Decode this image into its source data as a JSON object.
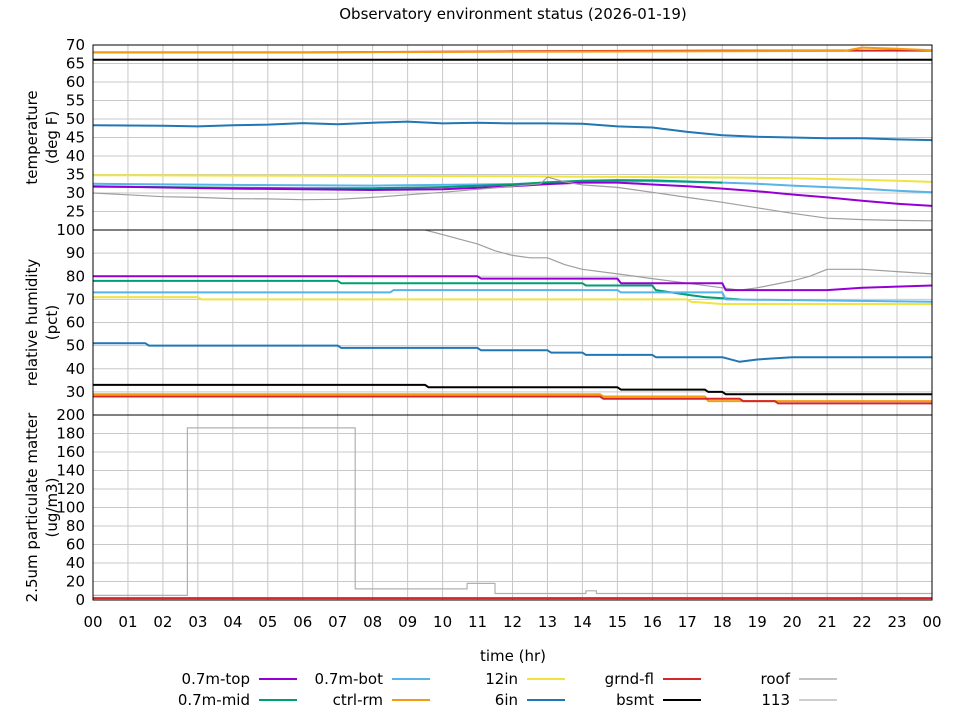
{
  "chart_data": [
    {
      "type": "line",
      "title": "Observatory environment status (2026-01-19)",
      "ylabel": [
        "temperature",
        "(deg F)"
      ],
      "ylim": [
        20,
        70
      ],
      "yticks": [
        20,
        25,
        30,
        35,
        40,
        45,
        50,
        55,
        60,
        65,
        70
      ],
      "ytick_labels": [
        "",
        "25",
        "30",
        "35",
        "40",
        "45",
        "50",
        "55",
        "60",
        "65",
        "70"
      ],
      "xlim": [
        0,
        24
      ],
      "grid": true,
      "series": [
        {
          "name": "grnd-fl",
          "color": "#d62728",
          "x": [
            0,
            6,
            12,
            18,
            24
          ],
          "y": [
            68,
            68,
            68.3,
            68.5,
            68.5
          ]
        },
        {
          "name": "ctrl-rm",
          "color": "#f39c12",
          "x": [
            0,
            6,
            12,
            18,
            21.5,
            22,
            23,
            24
          ],
          "y": [
            68,
            68,
            68.2,
            68.3,
            68.4,
            69.3,
            69,
            68.6
          ]
        },
        {
          "name": "bsmt",
          "color": "#000000",
          "x": [
            0,
            6,
            12,
            18,
            24
          ],
          "y": [
            66,
            66,
            66,
            66,
            66
          ]
        },
        {
          "name": "6in",
          "color": "#1f77b4",
          "x": [
            0,
            2,
            3,
            4,
            5,
            6,
            7,
            8,
            9,
            10,
            11,
            12,
            13,
            14,
            15,
            16,
            17,
            18,
            19,
            20,
            21,
            22,
            23,
            24
          ],
          "y": [
            48.3,
            48.2,
            48,
            48.3,
            48.5,
            48.9,
            48.6,
            49,
            49.3,
            48.8,
            49,
            48.8,
            48.8,
            48.7,
            48,
            47.7,
            46.5,
            45.6,
            45.2,
            45,
            44.8,
            44.8,
            44.5,
            44.3
          ]
        },
        {
          "name": "12in",
          "color": "#f0e442",
          "x": [
            0,
            4,
            8,
            12,
            14,
            16,
            18,
            20,
            22,
            24
          ],
          "y": [
            34.8,
            34.7,
            34.6,
            34.5,
            34.4,
            34.3,
            34.2,
            34,
            33.6,
            33
          ]
        },
        {
          "name": "0.7m-bot",
          "color": "#56b4e9",
          "x": [
            0,
            4,
            8,
            12,
            13,
            14,
            15,
            16,
            17,
            18,
            19,
            20,
            21,
            22,
            23,
            24
          ],
          "y": [
            32.5,
            32.2,
            32,
            32.4,
            32.8,
            33,
            33.2,
            33.2,
            33,
            32.8,
            32.5,
            32,
            31.6,
            31.2,
            30.6,
            30.2
          ]
        },
        {
          "name": "0.7m-mid",
          "color": "#009e73",
          "x": [
            0,
            2,
            4,
            6,
            8,
            10,
            12,
            13,
            14,
            15,
            16,
            17,
            18
          ],
          "y": [
            31.7,
            31.6,
            31.4,
            31.3,
            31.3,
            31.6,
            32.3,
            32.9,
            33.3,
            33.5,
            33.4,
            33.1,
            32.8
          ]
        },
        {
          "name": "0.7m-top",
          "color": "#9400d3",
          "x": [
            0,
            4,
            8,
            10,
            12,
            13,
            14,
            15,
            16,
            17,
            18,
            19,
            20,
            21,
            22,
            23,
            24
          ],
          "y": [
            31.8,
            31.2,
            30.8,
            31,
            31.8,
            32.4,
            32.8,
            32.8,
            32.3,
            31.8,
            31.2,
            30.5,
            29.6,
            28.8,
            27.9,
            27.1,
            26.5
          ]
        },
        {
          "name": "roof",
          "color": "#9e9e9e",
          "x": [
            0,
            1,
            2,
            3,
            4,
            5,
            6,
            7,
            8,
            9,
            10,
            11,
            12,
            12.8,
            13,
            13.5,
            14,
            15,
            16,
            17,
            18,
            19,
            20,
            21,
            22,
            23,
            24
          ],
          "y": [
            30,
            29.5,
            29,
            28.8,
            28.5,
            28.4,
            28.2,
            28.3,
            28.8,
            29.5,
            30.2,
            31,
            31.8,
            32.5,
            34.3,
            33,
            32.2,
            31.5,
            30.2,
            28.8,
            27.5,
            26,
            24.5,
            23.2,
            22.8,
            22.6,
            22.5
          ]
        }
      ]
    },
    {
      "type": "line",
      "ylabel": [
        "relative humidity",
        "(pct)"
      ],
      "ylim": [
        20,
        100
      ],
      "yticks": [
        20,
        30,
        40,
        50,
        60,
        70,
        80,
        90,
        100
      ],
      "ytick_labels": [
        "",
        "30",
        "40",
        "50",
        "60",
        "70",
        "80",
        "90",
        "100"
      ],
      "xlim": [
        0,
        24
      ],
      "grid": true,
      "series": [
        {
          "name": "roof",
          "color": "#9e9e9e",
          "x": [
            9.5,
            10,
            10.5,
            11,
            11.5,
            12,
            12.5,
            13,
            13.5,
            14,
            15,
            16,
            17,
            18,
            18.5,
            19,
            20,
            20.5,
            21,
            22,
            23,
            24
          ],
          "y": [
            100,
            98,
            96,
            94,
            91,
            89,
            88,
            88,
            85,
            83,
            81,
            79,
            77,
            75,
            74,
            75,
            78,
            80,
            83,
            83,
            82,
            81
          ]
        },
        {
          "name": "0.7m-top",
          "color": "#9400d3",
          "x": [
            0,
            11,
            11.1,
            15,
            15.1,
            18,
            18.1,
            21,
            22,
            24
          ],
          "y": [
            80,
            80,
            79,
            79,
            77,
            77,
            74,
            74,
            75,
            76
          ]
        },
        {
          "name": "0.7m-mid",
          "color": "#009e73",
          "x": [
            0,
            7,
            7.1,
            14,
            14.1,
            16,
            16.1,
            17,
            17.5,
            18.5
          ],
          "y": [
            78,
            78,
            77,
            77,
            76,
            76,
            74,
            72,
            71,
            70
          ]
        },
        {
          "name": "0.7m-bot",
          "color": "#56b4e9",
          "x": [
            0,
            8.5,
            8.6,
            15,
            15.1,
            18,
            18.1,
            24
          ],
          "y": [
            73,
            73,
            74,
            74,
            73,
            73,
            70,
            69
          ]
        },
        {
          "name": "12in",
          "color": "#f0e442",
          "x": [
            0,
            3,
            3.1,
            17,
            17.1,
            18,
            24
          ],
          "y": [
            71,
            71,
            70,
            70,
            69,
            68,
            68
          ]
        },
        {
          "name": "6in",
          "color": "#1f77b4",
          "x": [
            0,
            1.5,
            1.6,
            7,
            7.1,
            11,
            11.1,
            13,
            13.1,
            14,
            14.1,
            16,
            16.1,
            18,
            18.5,
            19,
            20,
            24
          ],
          "y": [
            51,
            51,
            50,
            50,
            49,
            49,
            48,
            48,
            47,
            47,
            46,
            46,
            45,
            45,
            43,
            44,
            45,
            45
          ]
        },
        {
          "name": "bsmt",
          "color": "#000000",
          "x": [
            0,
            9.5,
            9.6,
            15,
            15.1,
            17.5,
            17.6,
            18,
            18.1,
            24
          ],
          "y": [
            33,
            33,
            32,
            32,
            31,
            31,
            30,
            30,
            29,
            29
          ]
        },
        {
          "name": "ctrl-rm",
          "color": "#f39c12",
          "x": [
            0,
            14.5,
            14.6,
            17.5,
            17.6,
            24
          ],
          "y": [
            29,
            29,
            28,
            28,
            26,
            26
          ]
        },
        {
          "name": "grnd-fl",
          "color": "#d62728",
          "x": [
            0,
            14.5,
            14.6,
            18.5,
            18.6,
            19.5,
            19.6,
            24
          ],
          "y": [
            28,
            28,
            27,
            27,
            26,
            26,
            25,
            25
          ]
        }
      ]
    },
    {
      "type": "line",
      "ylabel": [
        "2.5um particulate matter",
        "(ug/m3)"
      ],
      "xlabel": "time (hr)",
      "ylim": [
        0,
        200
      ],
      "yticks": [
        0,
        20,
        40,
        60,
        80,
        100,
        120,
        140,
        160,
        180,
        200
      ],
      "ytick_labels": [
        "0",
        "20",
        "40",
        "60",
        "80",
        "100",
        "120",
        "140",
        "160",
        "180",
        "200"
      ],
      "xlim": [
        0,
        24
      ],
      "xticks": [
        0,
        1,
        2,
        3,
        4,
        5,
        6,
        7,
        8,
        9,
        10,
        11,
        12,
        13,
        14,
        15,
        16,
        17,
        18,
        19,
        20,
        21,
        22,
        23,
        24
      ],
      "xtick_labels": [
        "00",
        "01",
        "02",
        "03",
        "04",
        "05",
        "06",
        "07",
        "08",
        "09",
        "10",
        "11",
        "12",
        "13",
        "14",
        "15",
        "16",
        "17",
        "18",
        "19",
        "20",
        "21",
        "22",
        "23",
        "00"
      ],
      "grid": true,
      "series": [
        {
          "name": "113",
          "color": "#b0b0b0",
          "x": [
            0,
            2.7,
            2.7,
            7.5,
            7.5,
            10.7,
            10.7,
            11.5,
            11.5,
            14.1,
            14.1,
            14.4,
            14.4,
            24
          ],
          "y": [
            5,
            5,
            186,
            186,
            12,
            12,
            18,
            18,
            7,
            7,
            10,
            10,
            7,
            7
          ]
        },
        {
          "name": "grnd-fl",
          "color": "#d62728",
          "x": [
            0,
            6,
            12,
            18,
            24
          ],
          "y": [
            2,
            2,
            2,
            2,
            2
          ]
        }
      ]
    }
  ],
  "legend": [
    {
      "name": "0.7m-top",
      "color": "#9400d3"
    },
    {
      "name": "0.7m-bot",
      "color": "#56b4e9"
    },
    {
      "name": "12in",
      "color": "#f0e442"
    },
    {
      "name": "grnd-fl",
      "color": "#d62728"
    },
    {
      "name": "roof",
      "color": "#9e9e9e"
    },
    {
      "name": "0.7m-mid",
      "color": "#009e73"
    },
    {
      "name": "ctrl-rm",
      "color": "#f39c12"
    },
    {
      "name": "6in",
      "color": "#1f77b4"
    },
    {
      "name": "bsmt",
      "color": "#000000"
    },
    {
      "name": "113",
      "color": "#b0b0b0"
    }
  ]
}
